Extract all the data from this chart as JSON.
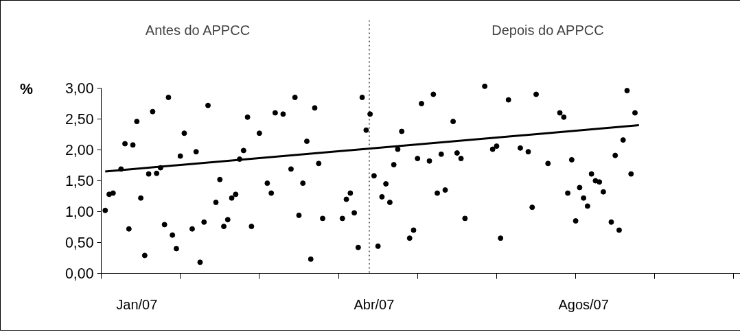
{
  "chart_data": {
    "type": "scatter",
    "ylabel": "%",
    "annotations": [
      "Antes do APPCC",
      "Depois do APPCC"
    ],
    "categories": [
      null,
      null,
      null,
      null,
      null,
      null,
      null,
      null,
      null,
      "Jan/07",
      null,
      null,
      null,
      null,
      null,
      null,
      null,
      null,
      null,
      null,
      null,
      null,
      null,
      null,
      null,
      null,
      null,
      null,
      null,
      null,
      null,
      null,
      null,
      null,
      null,
      null,
      null,
      null,
      null,
      null,
      null,
      null,
      null,
      null,
      null,
      null,
      null,
      null,
      null,
      null,
      null,
      null,
      null,
      null,
      null,
      null,
      null,
      null,
      null,
      null,
      null,
      null,
      null,
      null,
      null,
      null,
      null,
      null,
      null,
      "Abr/07",
      null,
      null,
      null,
      null,
      null,
      null,
      null,
      null,
      null,
      null,
      null,
      null,
      null,
      null,
      null,
      null,
      null,
      null,
      null,
      null,
      null,
      null,
      null,
      null,
      null,
      null,
      null,
      null,
      null,
      null,
      null,
      null,
      null,
      null,
      null,
      null,
      null,
      null,
      null,
      null,
      null,
      null,
      null,
      null,
      null,
      null,
      null,
      null,
      null,
      null,
      null,
      null,
      "Agos/07",
      null,
      null,
      null,
      null,
      null,
      null,
      null,
      null,
      null,
      null,
      null,
      null,
      null,
      null,
      null,
      null,
      null,
      null,
      null,
      null,
      null,
      null,
      null,
      null,
      null,
      null,
      null,
      null,
      null,
      null,
      null,
      null,
      null,
      null,
      null,
      null,
      null,
      null,
      null
    ],
    "ylim": [
      0,
      4.1
    ],
    "yticks": [
      {
        "value": 0,
        "label": "0,00"
      },
      {
        "value": 0.5,
        "label": "0,50"
      },
      {
        "value": 1,
        "label": "1,00"
      },
      {
        "value": 1.5,
        "label": "1,50"
      },
      {
        "value": 2,
        "label": "2,00"
      },
      {
        "value": 2.5,
        "label": "2,50"
      },
      {
        "value": 3,
        "label": "3,00"
      }
    ],
    "series": [
      {
        "color": "#000000",
        "marker": "circle",
        "values": [
          null,
          1.02,
          1.28,
          1.3,
          null,
          1.69,
          2.1,
          0.72,
          2.08,
          2.46,
          1.22,
          0.29,
          1.61,
          2.62,
          1.62,
          1.71,
          0.79,
          2.85,
          0.62,
          0.4,
          1.9,
          2.27,
          null,
          0.72,
          1.97,
          0.18,
          0.83,
          2.72,
          null,
          1.15,
          1.52,
          0.76,
          0.87,
          1.22,
          1.28,
          1.85,
          1.99,
          2.53,
          0.76,
          null,
          2.27,
          null,
          1.46,
          1.3,
          2.6,
          null,
          2.58,
          null,
          1.69,
          2.85,
          0.94,
          1.46,
          2.14,
          0.23,
          2.68,
          1.78,
          0.89,
          null,
          null,
          null,
          null,
          0.89,
          1.2,
          1.3,
          0.98,
          0.42,
          2.85,
          2.32,
          2.58,
          1.58,
          0.44,
          1.24,
          1.45,
          1.15,
          1.76,
          2.01,
          2.3,
          null,
          0.57,
          0.7,
          1.86,
          2.75,
          null,
          1.82,
          2.9,
          1.3,
          1.93,
          1.35,
          null,
          2.46,
          1.95,
          1.86,
          0.89,
          null,
          null,
          null,
          null,
          3.03,
          null,
          2.01,
          2.06,
          0.57,
          null,
          2.81,
          null,
          null,
          2.03,
          null,
          1.97,
          1.07,
          2.9,
          null,
          null,
          1.78,
          null,
          null,
          2.6,
          2.53,
          1.3,
          1.84,
          0.85,
          1.39,
          1.22,
          1.09,
          1.61,
          1.5,
          1.48,
          1.32,
          null,
          0.83,
          1.91,
          0.7,
          2.16,
          2.96,
          1.61,
          2.6,
          null,
          null,
          null,
          null,
          null,
          null,
          null,
          null,
          null,
          null,
          null,
          null,
          null,
          null,
          null,
          null,
          null,
          null,
          null,
          null,
          null,
          null,
          null,
          null,
          null,
          null
        ]
      },
      {
        "type": "line",
        "color": "#000000",
        "marker": "none",
        "values": [
          null,
          1.65,
          null,
          null,
          null,
          null,
          null,
          null,
          null,
          null,
          null,
          null,
          null,
          null,
          null,
          null,
          null,
          null,
          null,
          null,
          null,
          null,
          null,
          null,
          null,
          null,
          null,
          null,
          null,
          null,
          null,
          null,
          null,
          null,
          null,
          null,
          null,
          null,
          null,
          null,
          null,
          null,
          null,
          null,
          null,
          null,
          null,
          null,
          null,
          null,
          null,
          null,
          null,
          null,
          null,
          null,
          null,
          null,
          null,
          null,
          null,
          null,
          null,
          null,
          null,
          null,
          null,
          null,
          null,
          null,
          null,
          null,
          null,
          null,
          null,
          null,
          null,
          null,
          null,
          null,
          null,
          null,
          null,
          null,
          null,
          null,
          null,
          null,
          null,
          null,
          null,
          null,
          null,
          null,
          null,
          null,
          null,
          null,
          null,
          null,
          null,
          null,
          null,
          null,
          null,
          null,
          null,
          null,
          null,
          null,
          null,
          null,
          null,
          null,
          null,
          null,
          null,
          null,
          null,
          null,
          null,
          null,
          null,
          null,
          null,
          null,
          null,
          null,
          null,
          null,
          null,
          null,
          null,
          null,
          null,
          null,
          2.4,
          null,
          null,
          null,
          null,
          null,
          null,
          null,
          null,
          null,
          null,
          null,
          null,
          null,
          null,
          null,
          null,
          null,
          null,
          null,
          null,
          null,
          null,
          null,
          null,
          null
        ]
      }
    ]
  }
}
